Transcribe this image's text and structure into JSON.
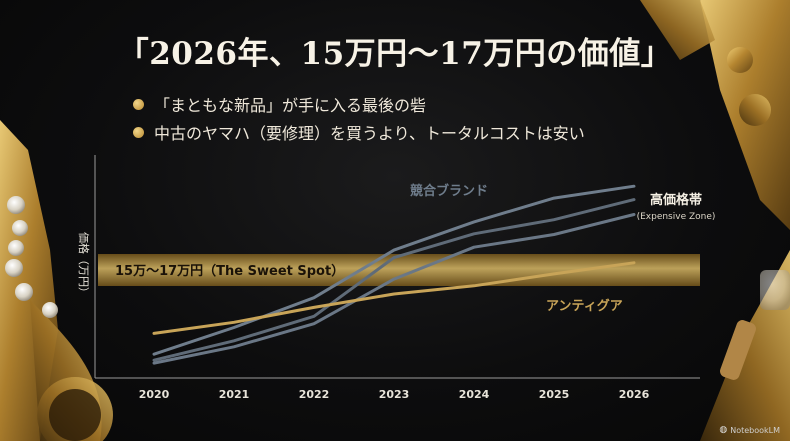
{
  "slide": {
    "title": "「2026年、15万円〜17万円の価値」",
    "bullets": [
      "「まともな新品」が手に入る最後の砦",
      "中古のヤマハ（要修理）を買うより、トータルコストは安い"
    ],
    "watermark": "NotebookLM"
  },
  "chart_data": {
    "type": "line",
    "x": [
      2020,
      2021,
      2022,
      2023,
      2024,
      2025,
      2026
    ],
    "ylabel": "価格（万円）",
    "grid": false,
    "band": {
      "label": "15万〜17万円（The Sweet Spot）",
      "color": "#c9a24a"
    },
    "series": [
      {
        "name": "競合ブランド",
        "color": "#6f7d8c",
        "values": [
          3.2,
          6.8,
          10.8,
          17.2,
          21.0,
          24.2,
          25.8
        ]
      },
      {
        "name": "",
        "color": "#5f6b78",
        "values": [
          2.4,
          5.0,
          8.3,
          16.2,
          19.4,
          21.3,
          24.0
        ]
      },
      {
        "name": "高価格帯",
        "sublabel": "(Expensive Zone)",
        "color": "#6a7786",
        "values": [
          2.0,
          4.2,
          7.3,
          13.3,
          17.6,
          19.3,
          22.0
        ]
      },
      {
        "name": "アンティグア",
        "color": "#c8a458",
        "values": [
          6.0,
          7.5,
          9.5,
          11.3,
          12.4,
          14.0,
          15.5
        ]
      }
    ],
    "ylim": [
      0,
      30
    ],
    "colors": {
      "axis": "#9a9a9a",
      "tick": "#e8e4da",
      "gold": "#c9a24a"
    }
  }
}
